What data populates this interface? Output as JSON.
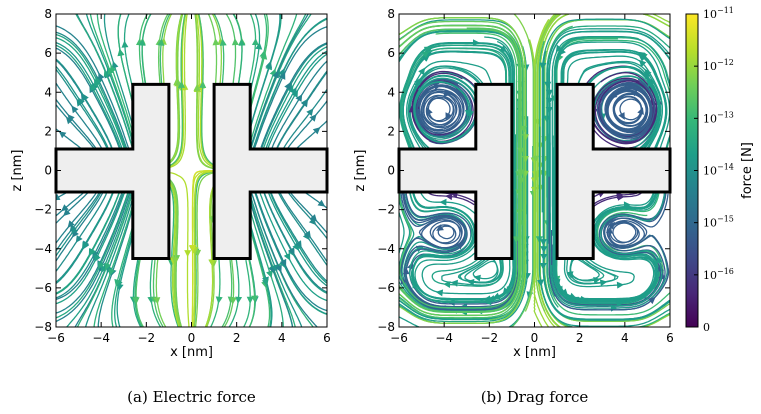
{
  "chart_data": [
    {
      "type": "streamplot",
      "caption": "(a) Electric force",
      "xlabel": "x [nm]",
      "ylabel": "z [nm]",
      "xlim": [
        -6,
        6
      ],
      "ylim": [
        -8,
        8
      ],
      "xticks": [
        -6,
        -4,
        -2,
        0,
        2,
        4,
        6
      ],
      "yticks": [
        -8,
        -6,
        -4,
        -2,
        0,
        2,
        4,
        6,
        8
      ],
      "obstacle_polygon": [
        [
          -6,
          1.1
        ],
        [
          -2.6,
          1.1
        ],
        [
          -2.6,
          4.4
        ],
        [
          -1,
          4.4
        ],
        [
          -1,
          -4.5
        ],
        [
          -2.6,
          -4.5
        ],
        [
          -2.6,
          -1.1
        ],
        [
          -6,
          -1.1
        ]
      ],
      "obstacle_polygon_right": [
        [
          6,
          1.1
        ],
        [
          2.6,
          1.1
        ],
        [
          2.6,
          4.4
        ],
        [
          1,
          4.4
        ],
        [
          1,
          -4.5
        ],
        [
          2.6,
          -4.5
        ],
        [
          2.6,
          -1.1
        ],
        [
          6,
          -1.1
        ]
      ],
      "colormap": "viridis"
    },
    {
      "type": "streamplot",
      "caption": "(b) Drag force",
      "xlabel": "x [nm]",
      "ylabel": "z [nm]",
      "xlim": [
        -6,
        6
      ],
      "ylim": [
        -8,
        8
      ],
      "xticks": [
        -6,
        -4,
        -2,
        0,
        2,
        4,
        6
      ],
      "yticks": [
        -8,
        -6,
        -4,
        -2,
        0,
        2,
        4,
        6,
        8
      ],
      "colormap": "viridis"
    },
    {
      "type": "colorbar",
      "label": "force [N]",
      "tick_base": "10",
      "ticks": [
        {
          "value": 0,
          "text": "0"
        },
        {
          "value": 1e-16,
          "exp": "−16"
        },
        {
          "value": 1e-15,
          "exp": "−15"
        },
        {
          "value": 1e-14,
          "exp": "−14"
        },
        {
          "value": 1e-13,
          "exp": "−13"
        },
        {
          "value": 1e-12,
          "exp": "−12"
        },
        {
          "value": 1e-11,
          "exp": "−11"
        }
      ]
    }
  ],
  "colors": {
    "viridis": [
      "#440154",
      "#482878",
      "#3e4a89",
      "#31688e",
      "#26828e",
      "#1f9e89",
      "#35b779",
      "#6ece58",
      "#b5de2b",
      "#fde725"
    ],
    "obstacle_fill": "#eeeeee"
  }
}
